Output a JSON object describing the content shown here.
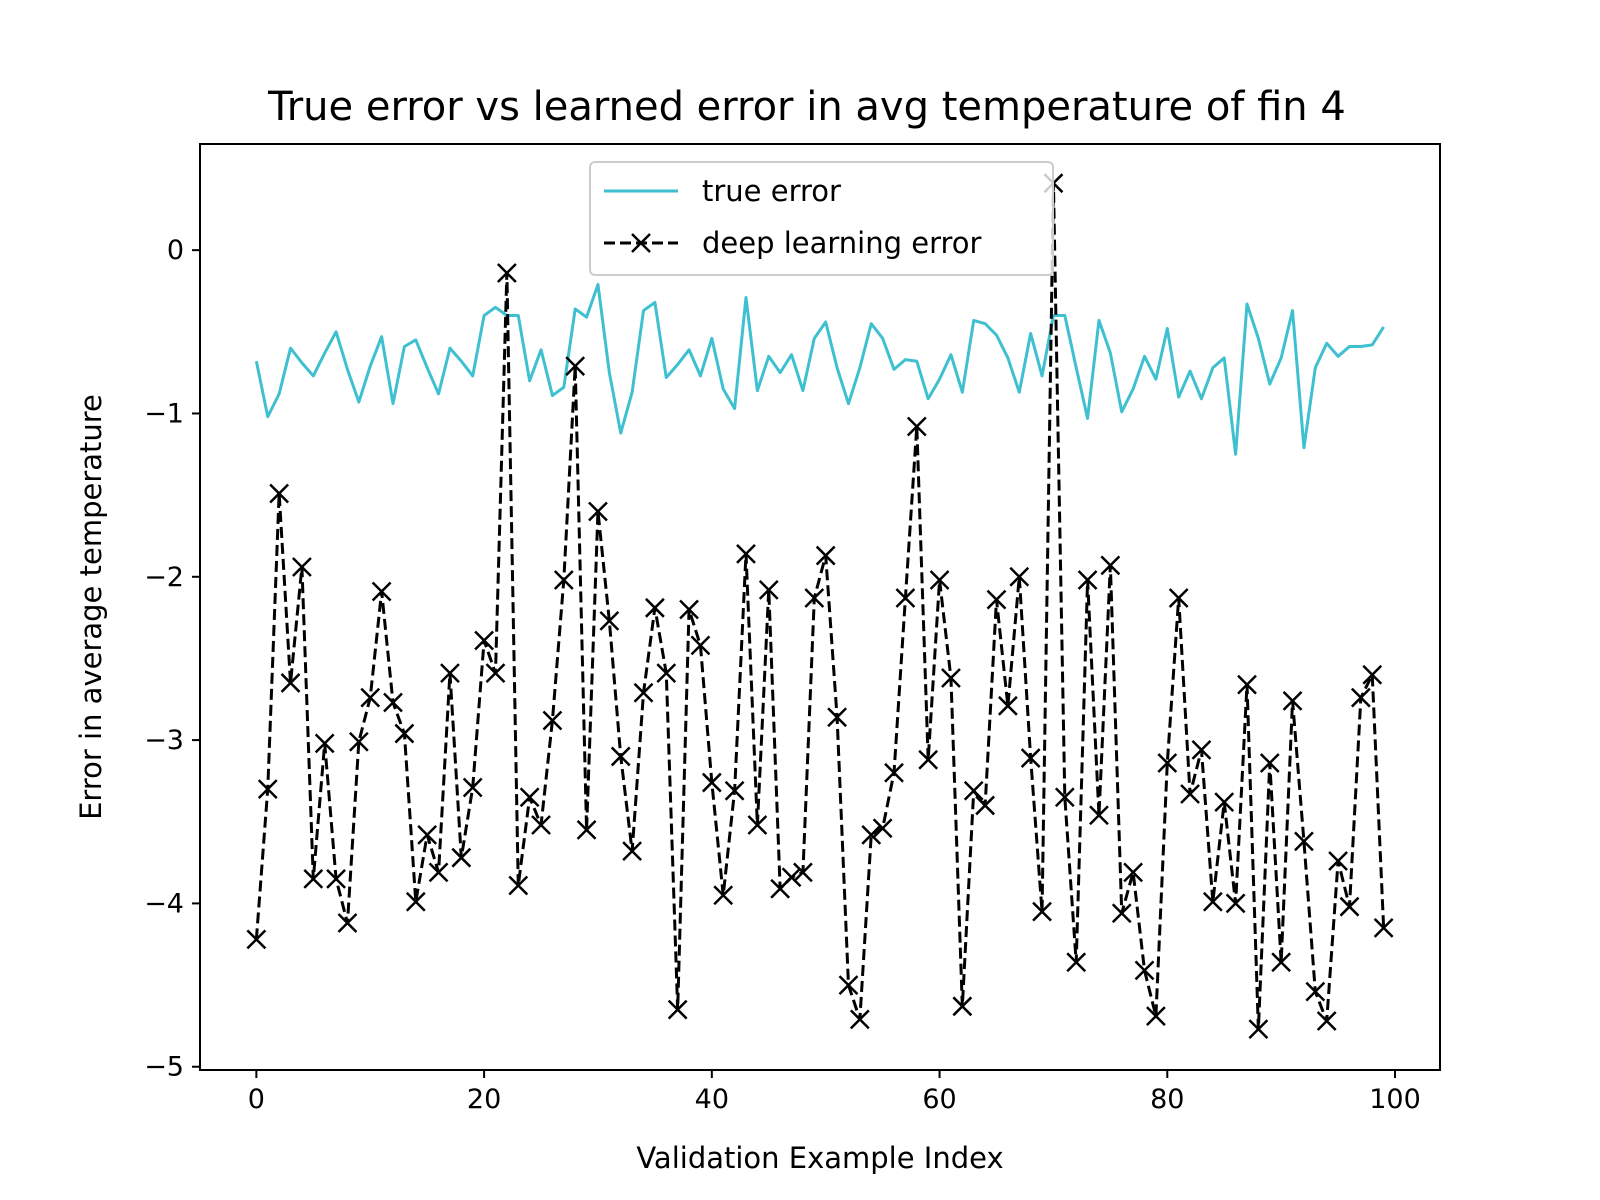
{
  "chart_data": {
    "type": "line",
    "title": "True error vs learned error in avg temperature of fin 4",
    "xlabel": "Validation Example Index",
    "ylabel": "Error in average temperature",
    "xlim": [
      -4.95,
      103.95
    ],
    "ylim": [
      -5.02,
      0.65
    ],
    "xticks": [
      0,
      20,
      40,
      60,
      80,
      100
    ],
    "yticks": [
      -5,
      -4,
      -3,
      -2,
      -1,
      0
    ],
    "xtick_labels": [
      "0",
      "20",
      "40",
      "60",
      "80",
      "100"
    ],
    "ytick_labels": [
      "−5",
      "−4",
      "−3",
      "−2",
      "−1",
      "0"
    ],
    "grid": false,
    "legend_position": "upper center",
    "series": [
      {
        "name": "true error",
        "color": "#3ec0d0",
        "style": "solid",
        "marker": "none",
        "values": [
          -0.68,
          -1.02,
          -0.88,
          -0.6,
          -0.69,
          -0.77,
          -0.63,
          -0.5,
          -0.73,
          -0.93,
          -0.71,
          -0.53,
          -0.94,
          -0.59,
          -0.55,
          -0.72,
          -0.88,
          -0.6,
          -0.68,
          -0.77,
          -0.4,
          -0.35,
          -0.4,
          -0.4,
          -0.8,
          -0.61,
          -0.89,
          -0.84,
          -0.36,
          -0.41,
          -0.21,
          -0.75,
          -1.12,
          -0.87,
          -0.37,
          -0.32,
          -0.78,
          -0.7,
          -0.61,
          -0.77,
          -0.54,
          -0.85,
          -0.97,
          -0.29,
          -0.86,
          -0.65,
          -0.75,
          -0.64,
          -0.86,
          -0.54,
          -0.44,
          -0.72,
          -0.94,
          -0.72,
          -0.45,
          -0.54,
          -0.73,
          -0.67,
          -0.68,
          -0.91,
          -0.79,
          -0.64,
          -0.87,
          -0.43,
          -0.45,
          -0.52,
          -0.66,
          -0.87,
          -0.51,
          -0.77,
          -0.4,
          -0.4,
          -0.72,
          -1.03,
          -0.43,
          -0.63,
          -0.99,
          -0.85,
          -0.65,
          -0.79,
          -0.48,
          -0.9,
          -0.74,
          -0.91,
          -0.72,
          -0.66,
          -1.25,
          -0.33,
          -0.54,
          -0.82,
          -0.66,
          -0.37,
          -1.21,
          -0.72,
          -0.57,
          -0.65,
          -0.59,
          -0.59,
          -0.58,
          -0.47
        ]
      },
      {
        "name": "deep learning error",
        "color": "#000000",
        "style": "dashed",
        "marker": "x",
        "values": [
          -4.22,
          -3.3,
          -1.49,
          -2.65,
          -1.94,
          -3.85,
          -3.02,
          -3.85,
          -4.12,
          -3.01,
          -2.74,
          -2.09,
          -2.77,
          -2.96,
          -3.99,
          -3.58,
          -3.81,
          -2.59,
          -3.72,
          -3.29,
          -2.39,
          -2.59,
          -0.14,
          -3.89,
          -3.35,
          -3.52,
          -2.88,
          -2.02,
          -0.71,
          -3.55,
          -1.6,
          -2.27,
          -3.1,
          -3.68,
          -2.71,
          -2.19,
          -2.59,
          -4.65,
          -2.2,
          -2.42,
          -3.26,
          -3.95,
          -3.31,
          -1.86,
          -3.52,
          -2.08,
          -3.91,
          -3.84,
          -3.81,
          -2.13,
          -1.87,
          -2.86,
          -4.5,
          -4.71,
          -3.58,
          -3.54,
          -3.2,
          -2.13,
          -1.08,
          -3.12,
          -2.02,
          -2.62,
          -4.63,
          -3.31,
          -3.4,
          -2.14,
          -2.79,
          -2.0,
          -3.11,
          -4.05,
          0.41,
          -3.35,
          -4.36,
          -2.02,
          -3.46,
          -1.93,
          -4.06,
          -3.81,
          -4.41,
          -4.69,
          -3.14,
          -2.13,
          -3.33,
          -3.06,
          -3.99,
          -3.38,
          -4.0,
          -2.66,
          -4.77,
          -3.14,
          -4.36,
          -2.76,
          -3.62,
          -4.54,
          -4.72,
          -3.74,
          -4.02,
          -2.74,
          -2.6,
          -4.15
        ]
      }
    ]
  }
}
